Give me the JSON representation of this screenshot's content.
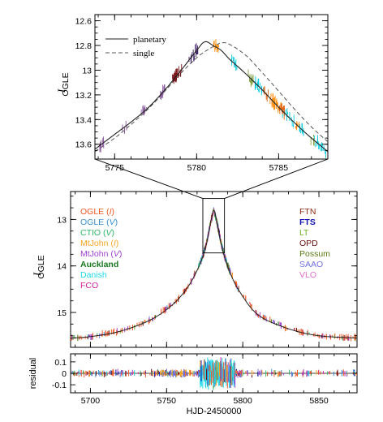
{
  "chart_data": [
    {
      "panel": "inset",
      "type": "line",
      "xlim": [
        5773.8,
        5788.0
      ],
      "ylim": [
        13.72,
        12.55
      ],
      "y_inverted": true,
      "xticks": [
        5775,
        5780,
        5785
      ],
      "xtick_labels": [
        "5775",
        "5780",
        "5785"
      ],
      "yticks": [
        12.6,
        12.8,
        13.0,
        13.2,
        13.4,
        13.6
      ],
      "ytick_labels": [
        "12.6",
        "12.8",
        "13",
        "13.2",
        "13.4",
        "13.6"
      ],
      "ylabel": "I",
      "ylabel_sub": "OGLE",
      "legend": [
        {
          "label": "planetary",
          "style": "solid"
        },
        {
          "label": "single",
          "style": "dashed"
        }
      ],
      "series": [
        {
          "name": "planetary",
          "style": "solid",
          "x": [
            5773.8,
            5775,
            5776,
            5777,
            5778,
            5779,
            5780,
            5780.5,
            5781,
            5781.5,
            5782,
            5783,
            5784,
            5785,
            5786,
            5787,
            5788
          ],
          "y": [
            13.64,
            13.52,
            13.42,
            13.31,
            13.17,
            13.01,
            12.84,
            12.77,
            12.8,
            12.84,
            12.91,
            13.03,
            13.16,
            13.3,
            13.43,
            13.55,
            13.66
          ]
        },
        {
          "name": "single",
          "style": "dashed",
          "x": [
            5773.8,
            5775,
            5776,
            5777,
            5778,
            5779,
            5780,
            5780.5,
            5781,
            5781.5,
            5782,
            5783,
            5784,
            5785,
            5786,
            5787,
            5788
          ],
          "y": [
            13.66,
            13.55,
            13.44,
            13.32,
            13.18,
            13.03,
            12.9,
            12.85,
            12.81,
            12.78,
            12.79,
            12.88,
            13.02,
            13.17,
            13.32,
            13.46,
            13.58
          ]
        }
      ],
      "observation_groups": [
        {
          "color": "#8a5a9e",
          "x": [
            5774.2,
            5775.6,
            5776.8,
            5777.9
          ]
        },
        {
          "color": "#7a1418",
          "x": [
            5778.6,
            5778.8,
            5779.0
          ]
        },
        {
          "color": "#3c1e64",
          "x": [
            5779.7,
            5779.9
          ]
        },
        {
          "color": "#ff8800",
          "x": [
            5781.2,
            5784.6,
            5784.8,
            5785.0,
            5786.2
          ]
        },
        {
          "color": "#00c8dc",
          "x": [
            5782.3,
            5783.6,
            5783.9,
            5785.4,
            5785.8,
            5786.4,
            5787.3,
            5787.7
          ]
        },
        {
          "color": "#e06010",
          "x": [
            5784.2,
            5785.2
          ]
        },
        {
          "color": "#80a040",
          "x": [
            5783.3,
            5787.0
          ]
        }
      ]
    },
    {
      "panel": "main",
      "type": "line",
      "xlim": [
        5687,
        5875
      ],
      "ylim": [
        15.75,
        12.4
      ],
      "y_inverted": true,
      "xticks": [
        5700,
        5750,
        5800,
        5850
      ],
      "xtick_labels": [
        "5700",
        "5750",
        "5800",
        "5850"
      ],
      "yticks": [
        13,
        14,
        15
      ],
      "ytick_labels": [
        "13",
        "14",
        "15"
      ],
      "ylabel": "I",
      "ylabel_sub": "OGLE",
      "model": {
        "x": [
          5687,
          5700,
          5720,
          5740,
          5755,
          5765,
          5772,
          5776,
          5779,
          5781,
          5783,
          5786,
          5790,
          5797,
          5810,
          5830,
          5850,
          5875
        ],
        "y": [
          15.55,
          15.52,
          15.4,
          15.15,
          14.8,
          14.4,
          13.95,
          13.55,
          13.05,
          12.8,
          13.05,
          13.55,
          14.0,
          14.5,
          15.05,
          15.35,
          15.5,
          15.55
        ]
      },
      "legend_left": [
        {
          "label": "OGLE (I)",
          "color": "#f05a28"
        },
        {
          "label": "OGLE (V)",
          "color": "#3a8fd0"
        },
        {
          "label": "CTIO (V)",
          "color": "#30b86a"
        },
        {
          "label": "MtJohn (I)",
          "color": "#f5a623"
        },
        {
          "label": "MtJohn (V)",
          "color": "#a040d0"
        },
        {
          "label": "Auckland",
          "color": "#1a7a20"
        },
        {
          "label": "Danish",
          "color": "#20d8e8"
        },
        {
          "label": "FCO",
          "color": "#d020a0"
        }
      ],
      "legend_right": [
        {
          "label": "FTN",
          "color": "#8b2a10"
        },
        {
          "label": "FTS",
          "color": "#1010b0"
        },
        {
          "label": "LT",
          "color": "#70b020"
        },
        {
          "label": "OPD",
          "color": "#6a1010"
        },
        {
          "label": "Possum",
          "color": "#5a7a10"
        },
        {
          "label": "SAAO",
          "color": "#7070e0"
        },
        {
          "label": "VLO",
          "color": "#e070c8"
        }
      ]
    },
    {
      "panel": "residual",
      "type": "scatter",
      "xlim": [
        5687,
        5875
      ],
      "ylim": [
        -0.17,
        0.17
      ],
      "xticks": [
        5700,
        5750,
        5800,
        5850
      ],
      "xtick_labels": [
        "5700",
        "5750",
        "5800",
        "5850"
      ],
      "yticks": [
        0.1,
        0,
        -0.1
      ],
      "ytick_labels": [
        "0.1",
        "0",
        "-0.1"
      ],
      "ylabel": "residual",
      "xlabel": "HJD-2450000"
    }
  ]
}
